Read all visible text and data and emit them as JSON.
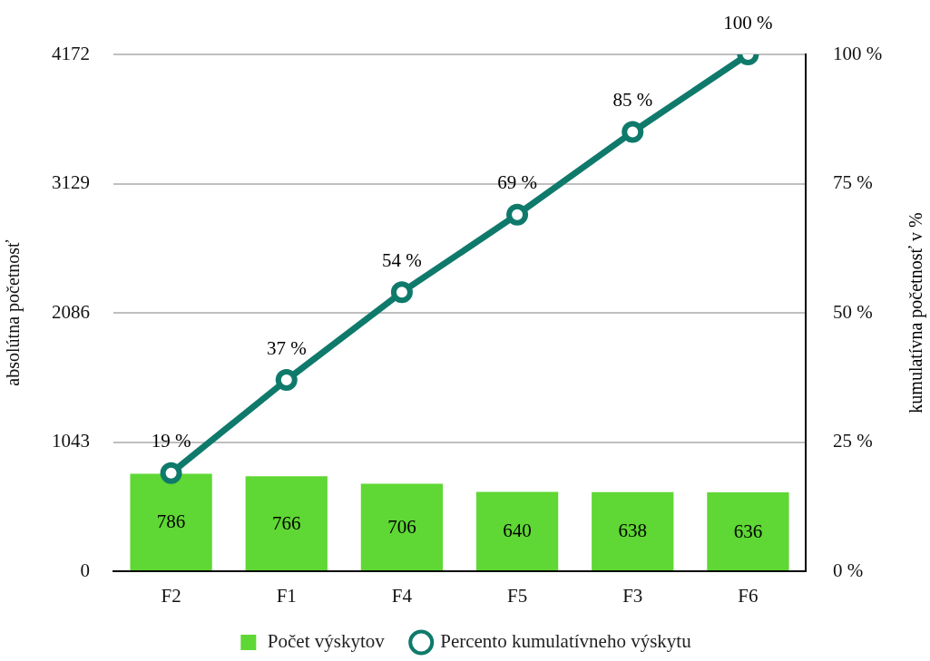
{
  "chart_data": {
    "type": "bar",
    "categories": [
      "F2",
      "F1",
      "F4",
      "F5",
      "F3",
      "F6"
    ],
    "series": [
      {
        "name": "Počet výskytov",
        "color": "#5fd734",
        "values": [
          786,
          766,
          706,
          640,
          638,
          636
        ],
        "value_labels": [
          "786",
          "766",
          "706",
          "640",
          "638",
          "636"
        ]
      },
      {
        "type": "line",
        "name": "Percento kumulatívneho výskytu",
        "color": "#0f7a6b",
        "axis": "y2",
        "marker": "circle",
        "line_style": "solid",
        "values": [
          19,
          37,
          54,
          69,
          85,
          100
        ],
        "value_labels": [
          "19 %",
          "37 %",
          "54 %",
          "69 %",
          "85 %",
          "100 %"
        ]
      }
    ],
    "ylabel": "absolútna početnosť",
    "y2label": "kumulatívna početnosť v %",
    "ylim": [
      0,
      4172
    ],
    "yticks": [
      0,
      1043,
      2086,
      3129,
      4172
    ],
    "y2lim": [
      0,
      100
    ],
    "y2ticks": [
      {
        "value": 0,
        "label": "0 %"
      },
      {
        "value": 25,
        "label": "25 %"
      },
      {
        "value": 50,
        "label": "50 %"
      },
      {
        "value": 75,
        "label": "75 %"
      },
      {
        "value": 100,
        "label": "100 %"
      }
    ],
    "grid": "y",
    "legend": "bottom"
  }
}
